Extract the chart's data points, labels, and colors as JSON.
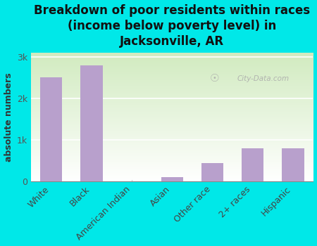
{
  "categories": [
    "White",
    "Black",
    "American Indian",
    "Asian",
    "Other race",
    "2+ races",
    "Hispanic"
  ],
  "values": [
    2500,
    2800,
    0,
    110,
    450,
    800,
    800
  ],
  "bar_color": "#b8a0cc",
  "bg_outer": "#00e8e8",
  "title": "Breakdown of poor residents within races\n(income below poverty level) in\nJacksonville, AR",
  "ylabel": "absolute numbers",
  "yticks": [
    0,
    1000,
    2000,
    3000
  ],
  "ytick_labels": [
    "0",
    "1k",
    "2k",
    "3k"
  ],
  "ylim": [
    0,
    3100
  ],
  "watermark": "City-Data.com",
  "title_fontsize": 12,
  "label_fontsize": 9,
  "tick_fontsize": 9,
  "gradient_colors": [
    "#d8e8c8",
    "#f8faf0",
    "#ffffff"
  ],
  "grid_color": "#c8d8b8"
}
